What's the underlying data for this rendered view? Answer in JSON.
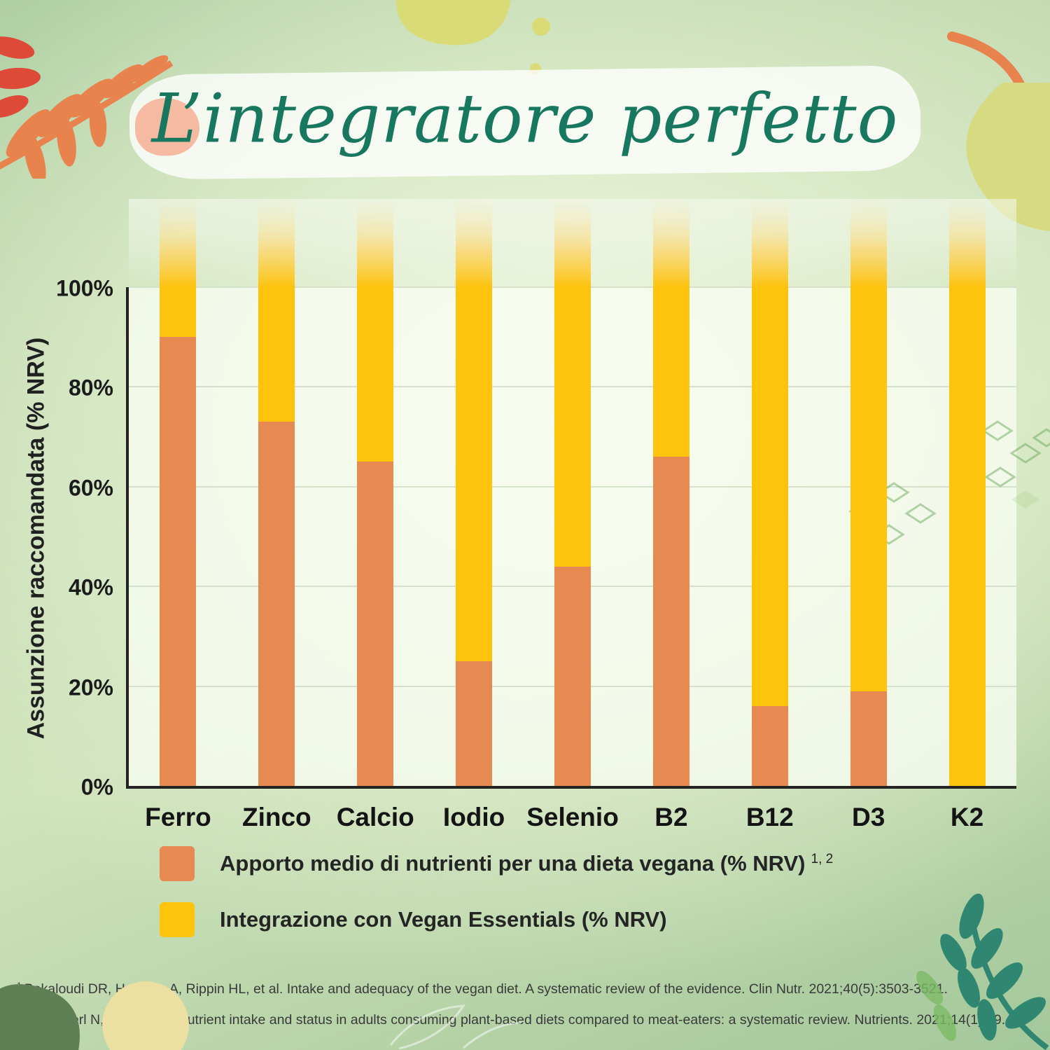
{
  "title": "L’integratore perfetto",
  "chart_data": {
    "type": "bar",
    "stacked": true,
    "title": "L’integratore perfetto",
    "categories": [
      "Ferro",
      "Zinco",
      "Calcio",
      "Iodio",
      "Selenio",
      "B2",
      "B12",
      "D3",
      "K2"
    ],
    "series": [
      {
        "name": "Apporto medio di nutrienti per una dieta vegana (% NRV)",
        "color": "#E78A51",
        "values": [
          90,
          73,
          65,
          25,
          44,
          66,
          16,
          19,
          0
        ]
      },
      {
        "name": "Integrazione con Vegan Essentials (% NRV)",
        "color": "#FEC30D",
        "values": [
          10,
          27,
          35,
          75,
          56,
          34,
          84,
          81,
          100
        ],
        "note": "supplement fills each bar to 100% NRV and beyond; bars fade out above the 100% line"
      }
    ],
    "xlabel": "",
    "ylabel": "Assunzione raccomandata (% NRV)",
    "ylim": [
      0,
      100
    ],
    "yticks": [
      "0%",
      "20%",
      "40%",
      "60%",
      "80%",
      "100%"
    ],
    "ytick_values": [
      0,
      20,
      40,
      60,
      80,
      100
    ],
    "grid": true,
    "legend_position": "bottom"
  },
  "legend": [
    {
      "label": "Apporto medio di nutrienti per una dieta vegana (% NRV)",
      "superscript": "1, 2",
      "color": "#E78A51"
    },
    {
      "label": "Integrazione con Vegan Essentials (% NRV)",
      "superscript": "",
      "color": "#FEC30D"
    }
  ],
  "footnotes": [
    {
      "marker": "1",
      "text": "Bakaloudi DR, Halloran A, Rippin HL, et al. Intake and adequacy of the vegan diet. A systematic review of the evidence. Clin Nutr. 2021;40(5):3503-3521."
    },
    {
      "marker": "2",
      "text": "Neufingerl N, Eilander A. Nutrient intake and status in adults consuming plant-based diets compared to meat-eaters: a systematic review. Nutrients. 2021;14(1):29."
    }
  ],
  "colors": {
    "title_teal": "#17785F",
    "bar_orange": "#E78A51",
    "bar_yellow": "#FEC30D",
    "axis": "#232321",
    "gridline": "#D6E1CC"
  }
}
